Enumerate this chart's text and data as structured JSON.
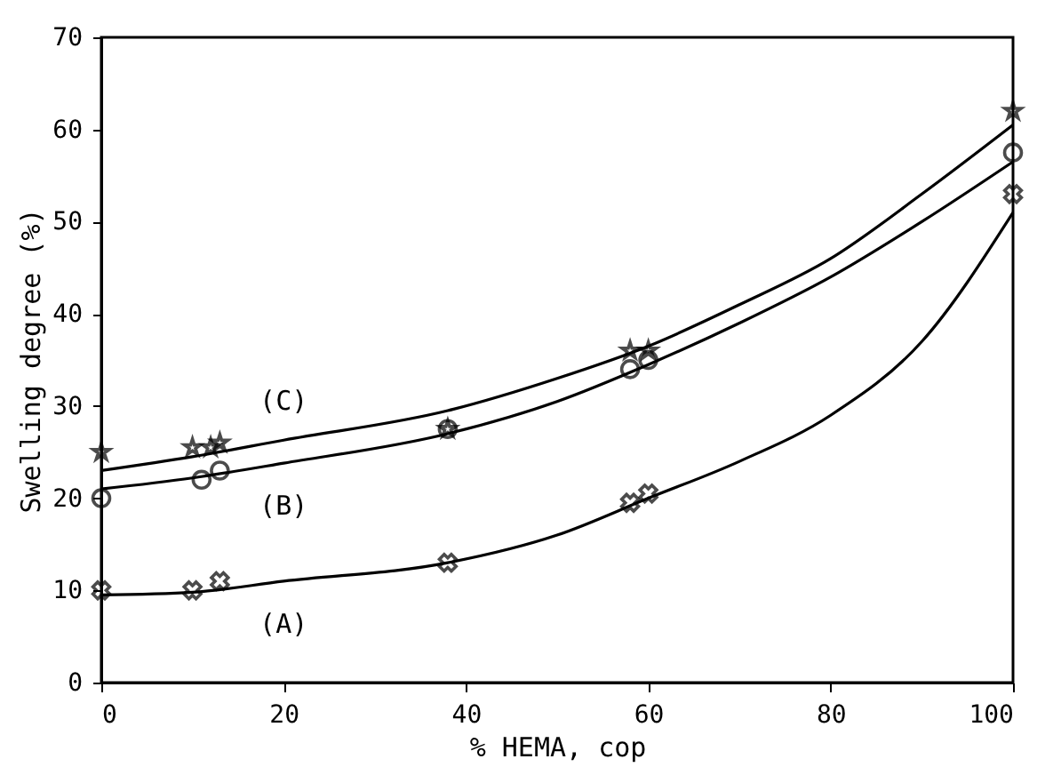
{
  "chart_data": {
    "type": "scatter",
    "xlabel": "% HEMA, cop",
    "ylabel": "Swelling degree (%)",
    "xlim": [
      0,
      100
    ],
    "ylim": [
      0,
      70
    ],
    "xticks": [
      0,
      20,
      40,
      60,
      80,
      100
    ],
    "yticks": [
      0,
      10,
      20,
      30,
      40,
      50,
      60,
      70
    ],
    "grid": false,
    "series": [
      {
        "marker": "cross",
        "color": "#000000",
        "x": [
          0,
          10,
          13,
          38,
          58,
          60,
          100
        ],
        "values": [
          10,
          10,
          11,
          13,
          19.5,
          20.5,
          53
        ]
      },
      {
        "marker": "circle",
        "color": "#000000",
        "x": [
          0,
          11,
          13,
          38,
          58,
          60,
          100
        ],
        "values": [
          20,
          22,
          23,
          27.5,
          34,
          35,
          57.5
        ]
      },
      {
        "marker": "star",
        "color": "#000000",
        "x": [
          0,
          10,
          12,
          13,
          38,
          58,
          60,
          100
        ],
        "values": [
          25,
          25.5,
          25.5,
          26,
          27.5,
          36,
          36,
          62
        ]
      },
      {
        "type": "line",
        "name": "(A)",
        "marker": "none",
        "line_style": "solid",
        "color": "#000000",
        "x": [
          0,
          10,
          20,
          38,
          50,
          60,
          70,
          80,
          90,
          100
        ],
        "values": [
          9.5,
          9.8,
          11,
          13,
          16,
          20,
          24,
          29,
          37,
          51
        ]
      },
      {
        "type": "line",
        "name": "(B)",
        "marker": "none",
        "line_style": "solid",
        "color": "#000000",
        "x": [
          0,
          10,
          20,
          38,
          50,
          60,
          70,
          80,
          90,
          100
        ],
        "values": [
          21,
          22.2,
          23.8,
          27,
          30.5,
          34.5,
          39,
          44,
          50,
          56.5
        ]
      },
      {
        "type": "line",
        "name": "(C)",
        "marker": "none",
        "line_style": "solid",
        "color": "#000000",
        "x": [
          0,
          10,
          20,
          38,
          50,
          60,
          70,
          80,
          90,
          100
        ],
        "values": [
          23,
          24.5,
          26.3,
          29.5,
          33,
          36.5,
          41,
          46,
          53,
          60.5
        ]
      }
    ]
  }
}
